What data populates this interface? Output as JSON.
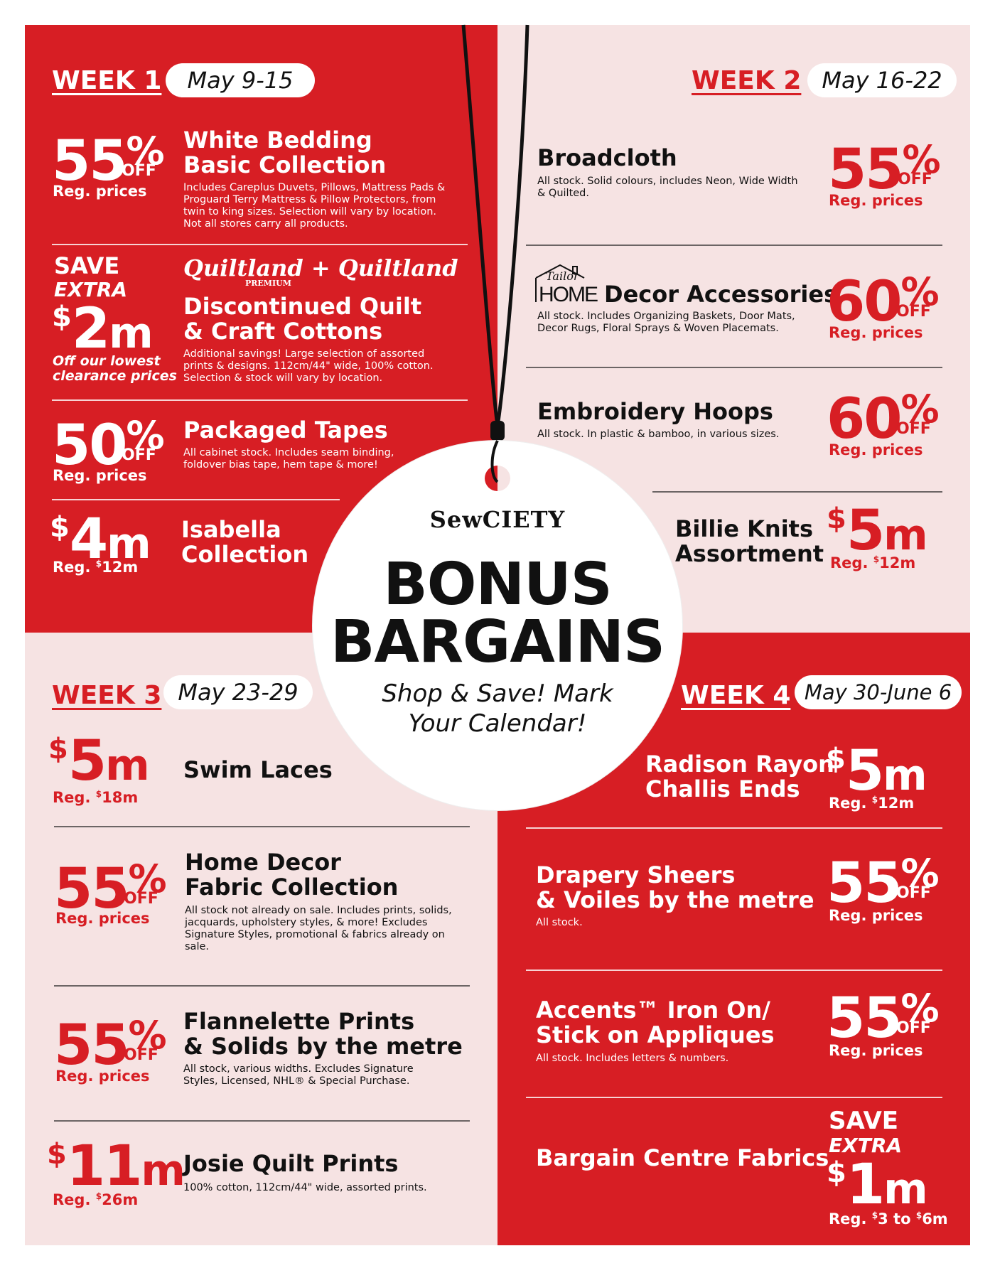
{
  "weeks": [
    {
      "label": "WEEK 1",
      "dates": "May 9-15"
    },
    {
      "label": "WEEK 2",
      "dates": "May 16-22"
    },
    {
      "label": "WEEK 3",
      "dates": "May 23-29"
    },
    {
      "label": "WEEK 4",
      "dates": "May 30-June 6"
    }
  ],
  "center": {
    "logo": "SewCIETY",
    "line1": "BONUS",
    "line2": "BARGAINS",
    "tagline1": "Shop & Save! Mark",
    "tagline2": "Your Calendar!"
  },
  "w1": {
    "d1": {
      "num": "55",
      "pct": "%",
      "off": "OFF",
      "reg": "Reg. prices",
      "title1": "White Bedding",
      "title2": "Basic Collection",
      "desc": "Includes Careplus Duvets, Pillows, Mattress Pads & Proguard Terry Mattress & Pillow Protectors, from twin to king sizes. Selection will vary by location. Not all stores carry all products."
    },
    "d2": {
      "save": "SAVE",
      "extra": "EXTRA",
      "cur": "$",
      "num": "2",
      "unit": "m",
      "note1": "Off our lowest",
      "note2": "clearance prices",
      "brand1": "Quiltland",
      "plus": "+",
      "brand2": "Quiltland",
      "premium": "PREMIUM",
      "title1": "Discontinued Quilt",
      "title2": "& Craft Cottons",
      "desc": "Additional savings! Large selection of assorted prints & designs. 112cm/44\" wide, 100% cotton. Selection & stock will vary by location."
    },
    "d3": {
      "num": "50",
      "pct": "%",
      "off": "OFF",
      "reg": "Reg. prices",
      "title": "Packaged Tapes",
      "desc": "All cabinet stock. Includes seam binding, foldover bias tape, hem tape & more!"
    },
    "d4": {
      "cur": "$",
      "num": "4",
      "unit": "m",
      "reg": "Reg.",
      "regcur": "$",
      "regval": "12m",
      "title1": "Isabella",
      "title2": "Collection"
    }
  },
  "w2": {
    "d1": {
      "title": "Broadcloth",
      "desc": "All stock. Solid colours, includes Neon, Wide Width & Quilted.",
      "num": "55",
      "pct": "%",
      "off": "OFF",
      "reg": "Reg. prices"
    },
    "d2": {
      "brand_top": "Tailor",
      "brand_bottom": "HOME",
      "title": "Decor Accessories",
      "desc": "All stock. Includes Organizing Baskets, Door Mats, Decor Rugs, Floral Sprays & Woven Placemats.",
      "num": "60",
      "pct": "%",
      "off": "OFF",
      "reg": "Reg. prices"
    },
    "d3": {
      "title": "Embroidery Hoops",
      "desc": "All stock. In plastic & bamboo, in various sizes.",
      "num": "60",
      "pct": "%",
      "off": "OFF",
      "reg": "Reg. prices"
    },
    "d4": {
      "title1": "Billie Knits",
      "title2": "Assortment",
      "cur": "$",
      "num": "5",
      "unit": "m",
      "reg": "Reg.",
      "regcur": "$",
      "regval": "12m"
    }
  },
  "w3": {
    "d1": {
      "cur": "$",
      "num": "5",
      "unit": "m",
      "reg": "Reg.",
      "regcur": "$",
      "regval": "18m",
      "title": "Swim Laces"
    },
    "d2": {
      "num": "55",
      "pct": "%",
      "off": "OFF",
      "reg": "Reg. prices",
      "title1": "Home Decor",
      "title2": "Fabric Collection",
      "desc": "All stock not already on sale. Includes prints, solids, jacquards, upholstery styles, & more! Excludes Signature Styles, promotional & fabrics already on sale."
    },
    "d3": {
      "num": "55",
      "pct": "%",
      "off": "OFF",
      "reg": "Reg. prices",
      "title1": "Flannelette Prints",
      "title2": "& Solids by the metre",
      "desc": "All stock, various widths. Excludes Signature Styles, Licensed, NHL® & Special Purchase."
    },
    "d4": {
      "cur": "$",
      "num": "11",
      "unit": "m",
      "reg": "Reg.",
      "regcur": "$",
      "regval": "26m",
      "title": "Josie Quilt Prints",
      "desc": "100% cotton, 112cm/44\" wide, assorted prints."
    }
  },
  "w4": {
    "d1": {
      "title1": "Radison Rayon",
      "title2": "Challis Ends",
      "cur": "$",
      "num": "5",
      "unit": "m",
      "reg": "Reg.",
      "regcur": "$",
      "regval": "12m"
    },
    "d2": {
      "title1": "Drapery Sheers",
      "title2": "& Voiles by the metre",
      "desc": "All stock.",
      "num": "55",
      "pct": "%",
      "off": "OFF",
      "reg": "Reg. prices"
    },
    "d3": {
      "title1": "Accents™ Iron On/",
      "title2": "Stick on Appliques",
      "desc": "All stock. Includes letters & numbers.",
      "num": "55",
      "pct": "%",
      "off": "OFF",
      "reg": "Reg. prices"
    },
    "d4": {
      "title": "Bargain Centre Fabrics",
      "save": "SAVE",
      "extra": "EXTRA",
      "cur": "$",
      "num": "1",
      "unit": "m",
      "reg": "Reg.",
      "regcur1": "$",
      "regval1": "3",
      "to": "to",
      "regcur2": "$",
      "regval2": "6m"
    }
  },
  "colors": {
    "red": "#d71e24",
    "pink": "#f6e3e3",
    "white": "#ffffff",
    "black": "#111111"
  }
}
